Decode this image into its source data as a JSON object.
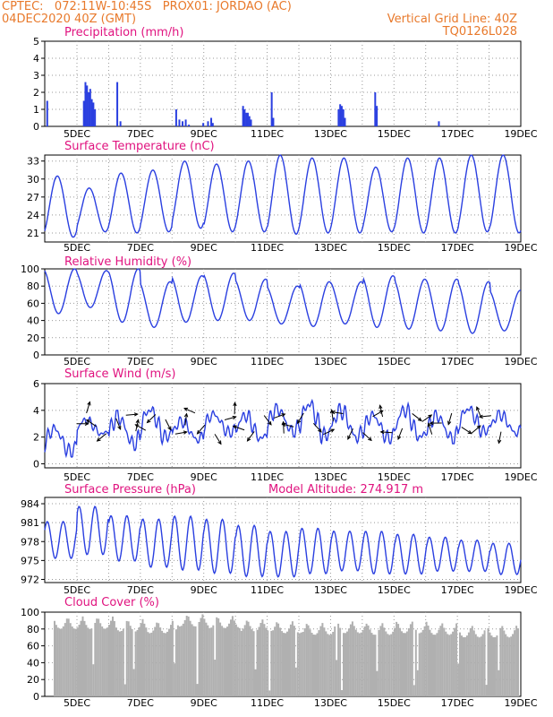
{
  "header": {
    "line1_left": "CPTEC:   072:11W-10:45S   PROX01: JORDAO (AC)",
    "line2_left": "04DEC2020 40Z (GMT)",
    "line2_right": "Vertical Grid Line: 40Z",
    "line3_right": "TQ0126L028"
  },
  "colors": {
    "header": "#e8792b",
    "title": "#e0137f",
    "line": "#2a3fe0",
    "cloud": "#b0b0b0",
    "grid": "#999999"
  },
  "x_ticks": [
    "5DEC",
    "7DEC",
    "9DEC",
    "11DEC",
    "13DEC",
    "15DEC",
    "17DEC",
    "19DEC"
  ],
  "chart_data": [
    {
      "type": "bar",
      "title": "Precipitation (mm/h)",
      "ylim": [
        0,
        5
      ],
      "yticks": [
        0,
        1,
        2,
        3,
        4,
        5
      ],
      "x_unit": "days since 4DEC 00Z",
      "bars": [
        [
          0.05,
          1.5
        ],
        [
          1.2,
          1.5
        ],
        [
          1.25,
          2.6
        ],
        [
          1.3,
          2.4
        ],
        [
          1.35,
          2.0
        ],
        [
          1.4,
          2.2
        ],
        [
          1.45,
          1.6
        ],
        [
          1.5,
          1.4
        ],
        [
          1.55,
          1.0
        ],
        [
          2.25,
          2.6
        ],
        [
          2.35,
          0.3
        ],
        [
          4.1,
          1.0
        ],
        [
          4.2,
          0.4
        ],
        [
          4.3,
          0.3
        ],
        [
          4.4,
          0.4
        ],
        [
          4.5,
          0.1
        ],
        [
          4.95,
          0.2
        ],
        [
          5.1,
          0.3
        ],
        [
          5.2,
          0.5
        ],
        [
          5.25,
          0.2
        ],
        [
          6.2,
          1.2
        ],
        [
          6.25,
          1.0
        ],
        [
          6.3,
          0.8
        ],
        [
          6.35,
          0.8
        ],
        [
          6.4,
          0.6
        ],
        [
          6.45,
          0.4
        ],
        [
          7.1,
          2.0
        ],
        [
          7.15,
          0.5
        ],
        [
          9.2,
          1.0
        ],
        [
          9.25,
          1.3
        ],
        [
          9.3,
          1.2
        ],
        [
          9.35,
          1.0
        ],
        [
          9.4,
          0.5
        ],
        [
          10.35,
          2.0
        ],
        [
          10.4,
          1.2
        ],
        [
          12.35,
          0.3
        ]
      ]
    },
    {
      "type": "line",
      "title": "Surface Temperature (nC)",
      "ylim": [
        19.5,
        34
      ],
      "yticks": [
        21,
        24,
        27,
        30,
        33
      ],
      "daily_max": [
        30.5,
        28.5,
        31,
        31.5,
        33,
        32.5,
        33,
        34,
        33.5,
        33.5,
        32,
        33.5,
        33.5,
        34,
        34
      ],
      "daily_min": [
        20.3,
        21.2,
        21,
        21.2,
        21.8,
        21.2,
        21.2,
        20.8,
        21.0,
        21.0,
        21.2,
        21.0,
        21.0,
        21.2,
        21.0
      ]
    },
    {
      "type": "line",
      "title": "Relative Humidity (%)",
      "ylim": [
        0,
        100
      ],
      "yticks": [
        0,
        20,
        40,
        60,
        80,
        100
      ],
      "daily_max": [
        100,
        98,
        100,
        85,
        92,
        95,
        88,
        80,
        85,
        85,
        92,
        88,
        88,
        85,
        75
      ],
      "daily_min": [
        48,
        55,
        38,
        32,
        38,
        40,
        40,
        36,
        33,
        36,
        32,
        30,
        28,
        25,
        28
      ]
    },
    {
      "type": "line",
      "title": "Surface Wind (m/s)",
      "ylim": [
        -0.3,
        6
      ],
      "yticks": [
        0,
        2,
        4,
        6
      ],
      "daily_max": [
        3.0,
        3.5,
        4.0,
        4.5,
        3.5,
        4.0,
        4.0,
        4.5,
        5.0,
        4.5,
        4.0,
        4.5,
        4.0,
        4.5,
        4.0
      ],
      "daily_min": [
        0.5,
        2.0,
        1.0,
        1.5,
        1.5,
        2.0,
        1.5,
        2.0,
        1.5,
        1.5,
        1.5,
        1.5,
        1.5,
        2.0,
        2.0
      ]
    },
    {
      "type": "line",
      "title": "Surface Pressure (hPa)",
      "subtitle": "Model Altitude: 274.917 m",
      "ylim": [
        971.5,
        985
      ],
      "yticks": [
        972,
        975,
        978,
        981,
        984
      ],
      "daily_max": [
        981.5,
        984.0,
        982.5,
        982.0,
        982.5,
        982.0,
        981.0,
        980.0,
        980.5,
        980.0,
        980.0,
        979.5,
        979.0,
        978.5,
        978.0
      ],
      "daily_min": [
        975.0,
        975.5,
        974.5,
        973.5,
        973.0,
        972.5,
        972.0,
        972.0,
        972.5,
        973.0,
        972.5,
        972.5,
        973.0,
        973.0,
        972.5
      ]
    },
    {
      "type": "area",
      "title": "Cloud Cover (%)",
      "ylim": [
        0,
        100
      ],
      "yticks": [
        0,
        20,
        40,
        60,
        80,
        100
      ],
      "daily_level": [
        95,
        95,
        92,
        90,
        98,
        96,
        92,
        90,
        88,
        90,
        88,
        90,
        88,
        85,
        85
      ]
    }
  ]
}
